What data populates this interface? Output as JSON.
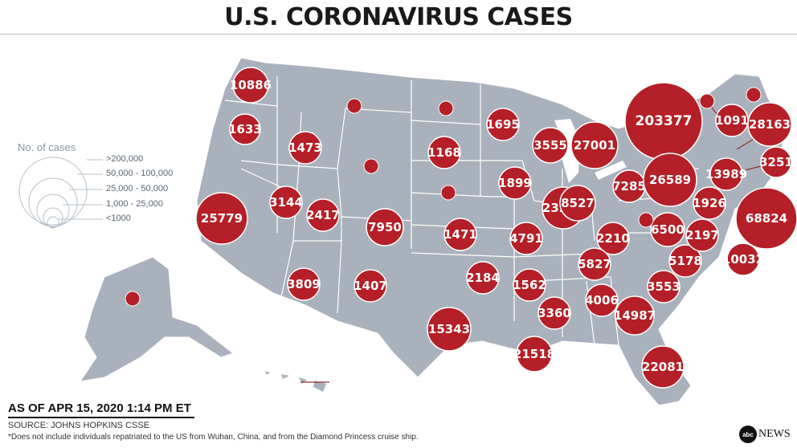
{
  "title": "U.S. CORONAVIRUS CASES",
  "legend": {
    "title": "No. of cases",
    "items": [
      ">200,000",
      "50,000 - 100,000",
      "25,000 - 50,000",
      "1,000 - 25,000",
      "<1000"
    ]
  },
  "as_of": "AS OF APR 15, 2020 1:14 PM ET",
  "source": "SOURCE: JOHNS HOPKINS CSSE",
  "footnote": "*Does not include individuals repatriated to the US from Wuhan, China, and from the Diamond Princess cruise ship.",
  "logo": {
    "badge": "abc",
    "word": "NEWS"
  },
  "colors": {
    "land": "#a9b1bc",
    "border": "#ffffff",
    "bubble": "#b51f27",
    "bubble_stroke": "#ffffff",
    "legend_ring": "#b8c0ca"
  },
  "bubbles": [
    {
      "label": "10886",
      "cases": 10886
    },
    {
      "label": "1633",
      "cases": 1633
    },
    {
      "label": "25779",
      "cases": 25779
    },
    {
      "label": "1473",
      "cases": 1473
    },
    {
      "label": "3144",
      "cases": 3144
    },
    {
      "label": "2417",
      "cases": 2417
    },
    {
      "label": "3809",
      "cases": 3809
    },
    {
      "label": "1407",
      "cases": 1407
    },
    {
      "label": "7950",
      "cases": 7950
    },
    {
      "label": "1168",
      "cases": 1168
    },
    {
      "label": "1471",
      "cases": 1471
    },
    {
      "label": "2184",
      "cases": 2184
    },
    {
      "label": "15343",
      "cases": 15343
    },
    {
      "label": "1695",
      "cases": 1695
    },
    {
      "label": "1899",
      "cases": 1899
    },
    {
      "label": "4791",
      "cases": 4791
    },
    {
      "label": "1562",
      "cases": 1562
    },
    {
      "label": "21518",
      "cases": 21518
    },
    {
      "label": "3555",
      "cases": 3555
    },
    {
      "label": "23248",
      "cases": 23248
    },
    {
      "label": "27001",
      "cases": 27001
    },
    {
      "label": "8527",
      "cases": 8527
    },
    {
      "label": "7285",
      "cases": 7285
    },
    {
      "label": "2210",
      "cases": 2210
    },
    {
      "label": "5827",
      "cases": 5827
    },
    {
      "label": "3360",
      "cases": 3360
    },
    {
      "label": "4006",
      "cases": 4006
    },
    {
      "label": "14987",
      "cases": 14987
    },
    {
      "label": "22081",
      "cases": 22081
    },
    {
      "label": "3553",
      "cases": 3553
    },
    {
      "label": "6500",
      "cases": 6500
    },
    {
      "label": "5178",
      "cases": 5178
    },
    {
      "label": "2197",
      "cases": 2197
    },
    {
      "label": "10032",
      "cases": 10032
    },
    {
      "label": "1926",
      "cases": 1926
    },
    {
      "label": "68824",
      "cases": 68824
    },
    {
      "label": "13989",
      "cases": 13989
    },
    {
      "label": "3251",
      "cases": 3251
    },
    {
      "label": "28163",
      "cases": 28163
    },
    {
      "label": "1091",
      "cases": 1091
    },
    {
      "label": "203377",
      "cases": 203377
    },
    {
      "label": "26589",
      "cases": 26589
    },
    {
      "label": "",
      "cases": null
    },
    {
      "label": "",
      "cases": null
    },
    {
      "label": "",
      "cases": null
    },
    {
      "label": "",
      "cases": null
    },
    {
      "label": "",
      "cases": null
    },
    {
      "label": "",
      "cases": null
    },
    {
      "label": "",
      "cases": null
    },
    {
      "label": "",
      "cases": null
    }
  ]
}
